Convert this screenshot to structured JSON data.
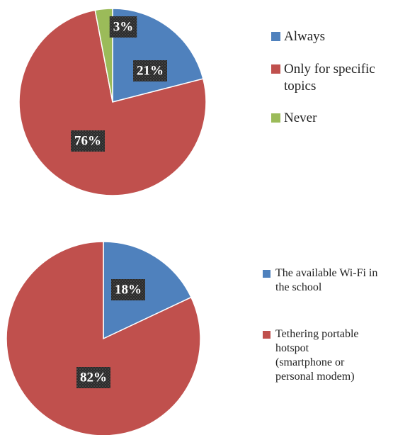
{
  "chart_data": [
    {
      "type": "pie",
      "categories": [
        "Always",
        "Only for specific topics",
        "Never"
      ],
      "values": [
        21,
        76,
        3
      ],
      "value_labels": [
        "21%",
        "76%",
        "3%"
      ],
      "colors": [
        "#4f81bd",
        "#c0504d",
        "#9bbb59"
      ]
    },
    {
      "type": "pie",
      "categories": [
        "The available Wi-Fi in the school",
        "Tethering portable hotspot (smartphone or personal modem)"
      ],
      "values": [
        18,
        82
      ],
      "value_labels": [
        "18%",
        "82%"
      ],
      "colors": [
        "#4f81bd",
        "#c0504d"
      ]
    }
  ]
}
